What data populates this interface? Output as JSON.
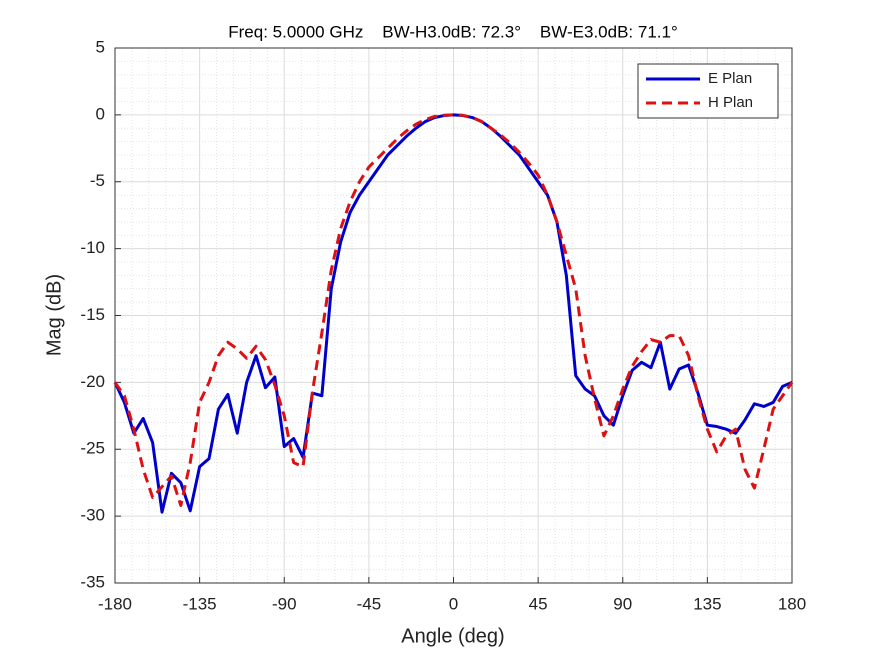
{
  "chart_data": {
    "type": "line",
    "title": "Freq: 5.0000 GHz    BW-H3.0dB: 72.3°    BW-E3.0dB: 71.1°",
    "x_label": "Angle (deg)",
    "y_label": "Mag (dB)",
    "x": [
      -180,
      -175,
      -170,
      -165,
      -160,
      -155,
      -150,
      -145,
      -140,
      -135,
      -130,
      -125,
      -120,
      -115,
      -110,
      -105,
      -100,
      -95,
      -90,
      -85,
      -80,
      -75,
      -70,
      -65,
      -60,
      -55,
      -50,
      -45,
      -40,
      -35,
      -30,
      -25,
      -20,
      -15,
      -10,
      -5,
      0,
      5,
      10,
      15,
      20,
      25,
      30,
      35,
      40,
      45,
      50,
      55,
      60,
      65,
      70,
      75,
      80,
      85,
      90,
      95,
      100,
      105,
      110,
      115,
      120,
      125,
      130,
      135,
      140,
      145,
      150,
      155,
      160,
      165,
      170,
      175,
      180
    ],
    "series": [
      {
        "name": "E Plan",
        "color": "#0000cc",
        "line_style": "solid",
        "values": [
          -20,
          -21.5,
          -23.8,
          -22.7,
          -24.5,
          -29.7,
          -26.8,
          -27.5,
          -29.6,
          -26.3,
          -25.7,
          -22,
          -20.9,
          -23.8,
          -20,
          -18,
          -20.4,
          -19.6,
          -24.8,
          -24.2,
          -25.6,
          -20.8,
          -21,
          -13,
          -9.5,
          -7.3,
          -6,
          -5,
          -4,
          -3,
          -2.3,
          -1.6,
          -1,
          -0.5,
          -0.2,
          -0.05,
          0,
          -0.05,
          -0.2,
          -0.5,
          -1,
          -1.6,
          -2.3,
          -3,
          -4,
          -5,
          -6,
          -8,
          -12,
          -19.5,
          -20.5,
          -21,
          -22.5,
          -23.2,
          -21,
          -19.1,
          -18.5,
          -18.9,
          -17,
          -20.5,
          -19,
          -18.7,
          -20.8,
          -23.2,
          -23.3,
          -23.5,
          -23.8,
          -22.8,
          -21.6,
          -21.8,
          -21.5,
          -20.3,
          -20
        ]
      },
      {
        "name": "H Plan",
        "color": "#dd1111",
        "line_style": "dashed",
        "values": [
          -20,
          -21,
          -23.5,
          -26.5,
          -28.6,
          -27.8,
          -27,
          -29.2,
          -26,
          -21.5,
          -20,
          -18,
          -17,
          -17.5,
          -18.2,
          -17.3,
          -18.3,
          -20.2,
          -22.5,
          -26,
          -26.3,
          -20.7,
          -16.3,
          -11.6,
          -8.5,
          -6.5,
          -5,
          -3.9,
          -3.2,
          -2.5,
          -1.8,
          -1.2,
          -0.7,
          -0.35,
          -0.12,
          -0.03,
          0,
          -0.03,
          -0.2,
          -0.5,
          -1,
          -1.5,
          -2.1,
          -2.8,
          -3.6,
          -4.5,
          -6,
          -8,
          -10.5,
          -13,
          -18,
          -21.2,
          -24,
          -22.5,
          -20.5,
          -18.8,
          -17.7,
          -16.8,
          -17,
          -16.5,
          -16.5,
          -18,
          -21,
          -23.5,
          -25.2,
          -24,
          -23.5,
          -26.5,
          -27.9,
          -25,
          -22,
          -21,
          -20
        ]
      }
    ],
    "xlim": [
      -180,
      180
    ],
    "xticks": [
      -180,
      -135,
      -90,
      -45,
      0,
      45,
      90,
      135,
      180
    ],
    "ylim": [
      -35,
      5
    ],
    "yticks": [
      -35,
      -30,
      -25,
      -20,
      -15,
      -10,
      -5,
      0,
      5
    ],
    "grid": true,
    "minor_grid": true,
    "legend": "northeast"
  }
}
